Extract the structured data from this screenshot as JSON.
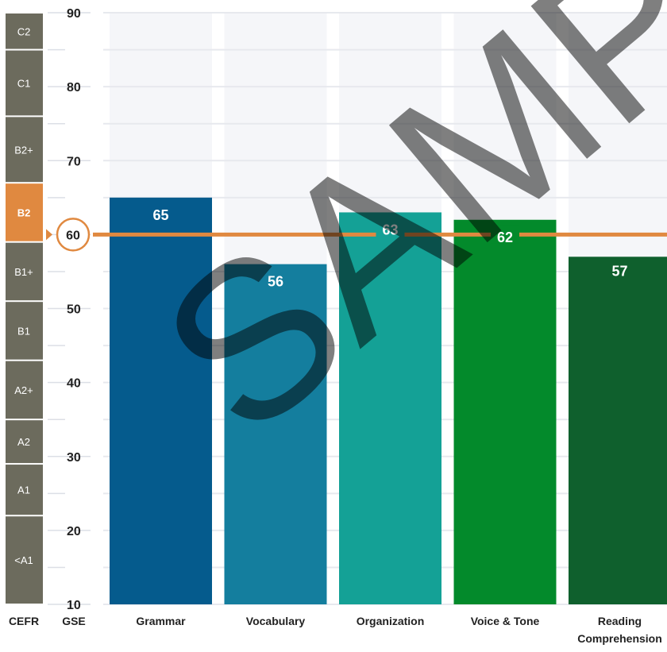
{
  "chart_data": {
    "type": "bar",
    "categories": [
      [
        "Grammar"
      ],
      [
        "Vocabulary"
      ],
      [
        "Organization"
      ],
      [
        "Voice & Tone"
      ],
      [
        "Reading",
        "Comprehension"
      ]
    ],
    "values": [
      65,
      56,
      63,
      62,
      57
    ],
    "bar_colors": [
      "#055b8d",
      "#147e9e",
      "#14a196",
      "#038a2b",
      "#0f602d"
    ],
    "ylim": [
      10,
      90
    ],
    "ytick_labels": [
      "10",
      "20",
      "30",
      "40",
      "50",
      "60",
      "70",
      "80",
      "90"
    ],
    "reference_line": {
      "value": 60,
      "label": "60",
      "color": "#e08940"
    },
    "cefr_levels": [
      {
        "label": "<A1",
        "from": 10,
        "to": 22
      },
      {
        "label": "A1",
        "from": 22,
        "to": 29
      },
      {
        "label": "A2",
        "from": 29,
        "to": 35
      },
      {
        "label": "A2+",
        "from": 35,
        "to": 43
      },
      {
        "label": "B1",
        "from": 43,
        "to": 51
      },
      {
        "label": "B1+",
        "from": 51,
        "to": 59
      },
      {
        "label": "B2",
        "from": 59,
        "to": 67,
        "highlight": true
      },
      {
        "label": "B2+",
        "from": 67,
        "to": 76
      },
      {
        "label": "C1",
        "from": 76,
        "to": 85
      },
      {
        "label": "C2",
        "from": 85,
        "to": 90
      }
    ],
    "cefr_color": "#6c6b5d",
    "highlight_color": "#e08940",
    "xaxis_left_labels": [
      "CEFR",
      "GSE"
    ],
    "watermark": "SAMPLE"
  }
}
